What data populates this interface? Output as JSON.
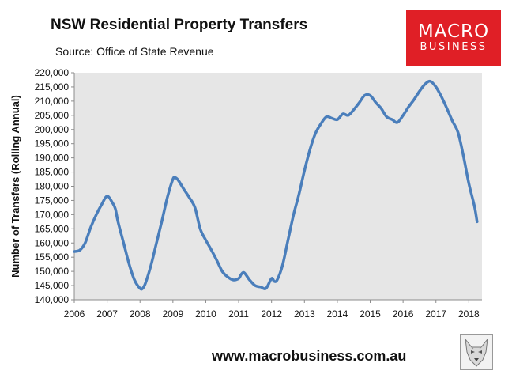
{
  "header": {
    "title": "NSW Residential Property Transfers",
    "source": "Source: Office of State Revenue"
  },
  "logo": {
    "line1": "MACRO",
    "line2": "BUSINESS",
    "color": "#e01f26"
  },
  "footer": {
    "website": "www.macrobusiness.com.au",
    "icon": "wolf-logo-icon"
  },
  "chart_data": {
    "type": "line",
    "ylabel": "Number of Transfers (Rolling Annual)",
    "xlabel": "",
    "ylim": [
      140000,
      220000
    ],
    "xlim": [
      2006,
      2018.4
    ],
    "y_ticks": [
      140000,
      145000,
      150000,
      155000,
      160000,
      165000,
      170000,
      175000,
      180000,
      185000,
      190000,
      195000,
      200000,
      205000,
      210000,
      215000,
      220000
    ],
    "y_tick_labels": [
      "140,000",
      "145,000",
      "150,000",
      "155,000",
      "160,000",
      "165,000",
      "170,000",
      "175,000",
      "180,000",
      "185,000",
      "190,000",
      "195,000",
      "200,000",
      "205,000",
      "210,000",
      "215,000",
      "220,000"
    ],
    "x_ticks": [
      2006,
      2007,
      2008,
      2009,
      2010,
      2011,
      2012,
      2013,
      2014,
      2015,
      2016,
      2017,
      2018
    ],
    "x_tick_labels": [
      "2006",
      "2007",
      "2008",
      "2009",
      "2010",
      "2011",
      "2012",
      "2013",
      "2014",
      "2015",
      "2016",
      "2017",
      "2018"
    ],
    "plot_background": "#e6e6e6",
    "grid": false,
    "series": [
      {
        "color": "#4a7ebb",
        "x": [
          2006.0,
          2006.17,
          2006.33,
          2006.5,
          2006.67,
          2006.83,
          2007.0,
          2007.17,
          2007.25,
          2007.33,
          2007.5,
          2007.67,
          2007.83,
          2008.0,
          2008.08,
          2008.17,
          2008.33,
          2008.5,
          2008.67,
          2008.83,
          2009.0,
          2009.08,
          2009.17,
          2009.33,
          2009.5,
          2009.67,
          2009.83,
          2010.0,
          2010.17,
          2010.33,
          2010.5,
          2010.67,
          2010.83,
          2011.0,
          2011.08,
          2011.17,
          2011.33,
          2011.5,
          2011.67,
          2011.83,
          2012.0,
          2012.08,
          2012.17,
          2012.33,
          2012.5,
          2012.67,
          2012.83,
          2013.0,
          2013.17,
          2013.33,
          2013.5,
          2013.67,
          2013.83,
          2014.0,
          2014.17,
          2014.33,
          2014.5,
          2014.67,
          2014.83,
          2015.0,
          2015.17,
          2015.33,
          2015.5,
          2015.67,
          2015.83,
          2016.0,
          2016.17,
          2016.33,
          2016.5,
          2016.67,
          2016.83,
          2017.0,
          2017.17,
          2017.33,
          2017.5,
          2017.67,
          2017.83,
          2018.0,
          2018.17,
          2018.25
        ],
        "y": [
          157000,
          157500,
          160000,
          165500,
          170000,
          173500,
          176500,
          174000,
          172000,
          167500,
          160000,
          152500,
          147000,
          144000,
          144000,
          146000,
          152000,
          160000,
          168000,
          176000,
          182500,
          183000,
          182000,
          179000,
          176000,
          172500,
          165000,
          161000,
          157500,
          154000,
          150000,
          148000,
          147000,
          147500,
          149000,
          149500,
          147000,
          145000,
          144500,
          144000,
          147500,
          146500,
          147000,
          152000,
          161000,
          170000,
          177000,
          185500,
          193000,
          198500,
          202000,
          204500,
          204000,
          203500,
          205500,
          205000,
          207000,
          209500,
          212000,
          212000,
          209500,
          207500,
          204500,
          203500,
          202500,
          205000,
          208000,
          210500,
          213500,
          216000,
          217000,
          215000,
          211500,
          207500,
          203000,
          199000,
          191000,
          181000,
          173000,
          167500
        ]
      }
    ]
  }
}
